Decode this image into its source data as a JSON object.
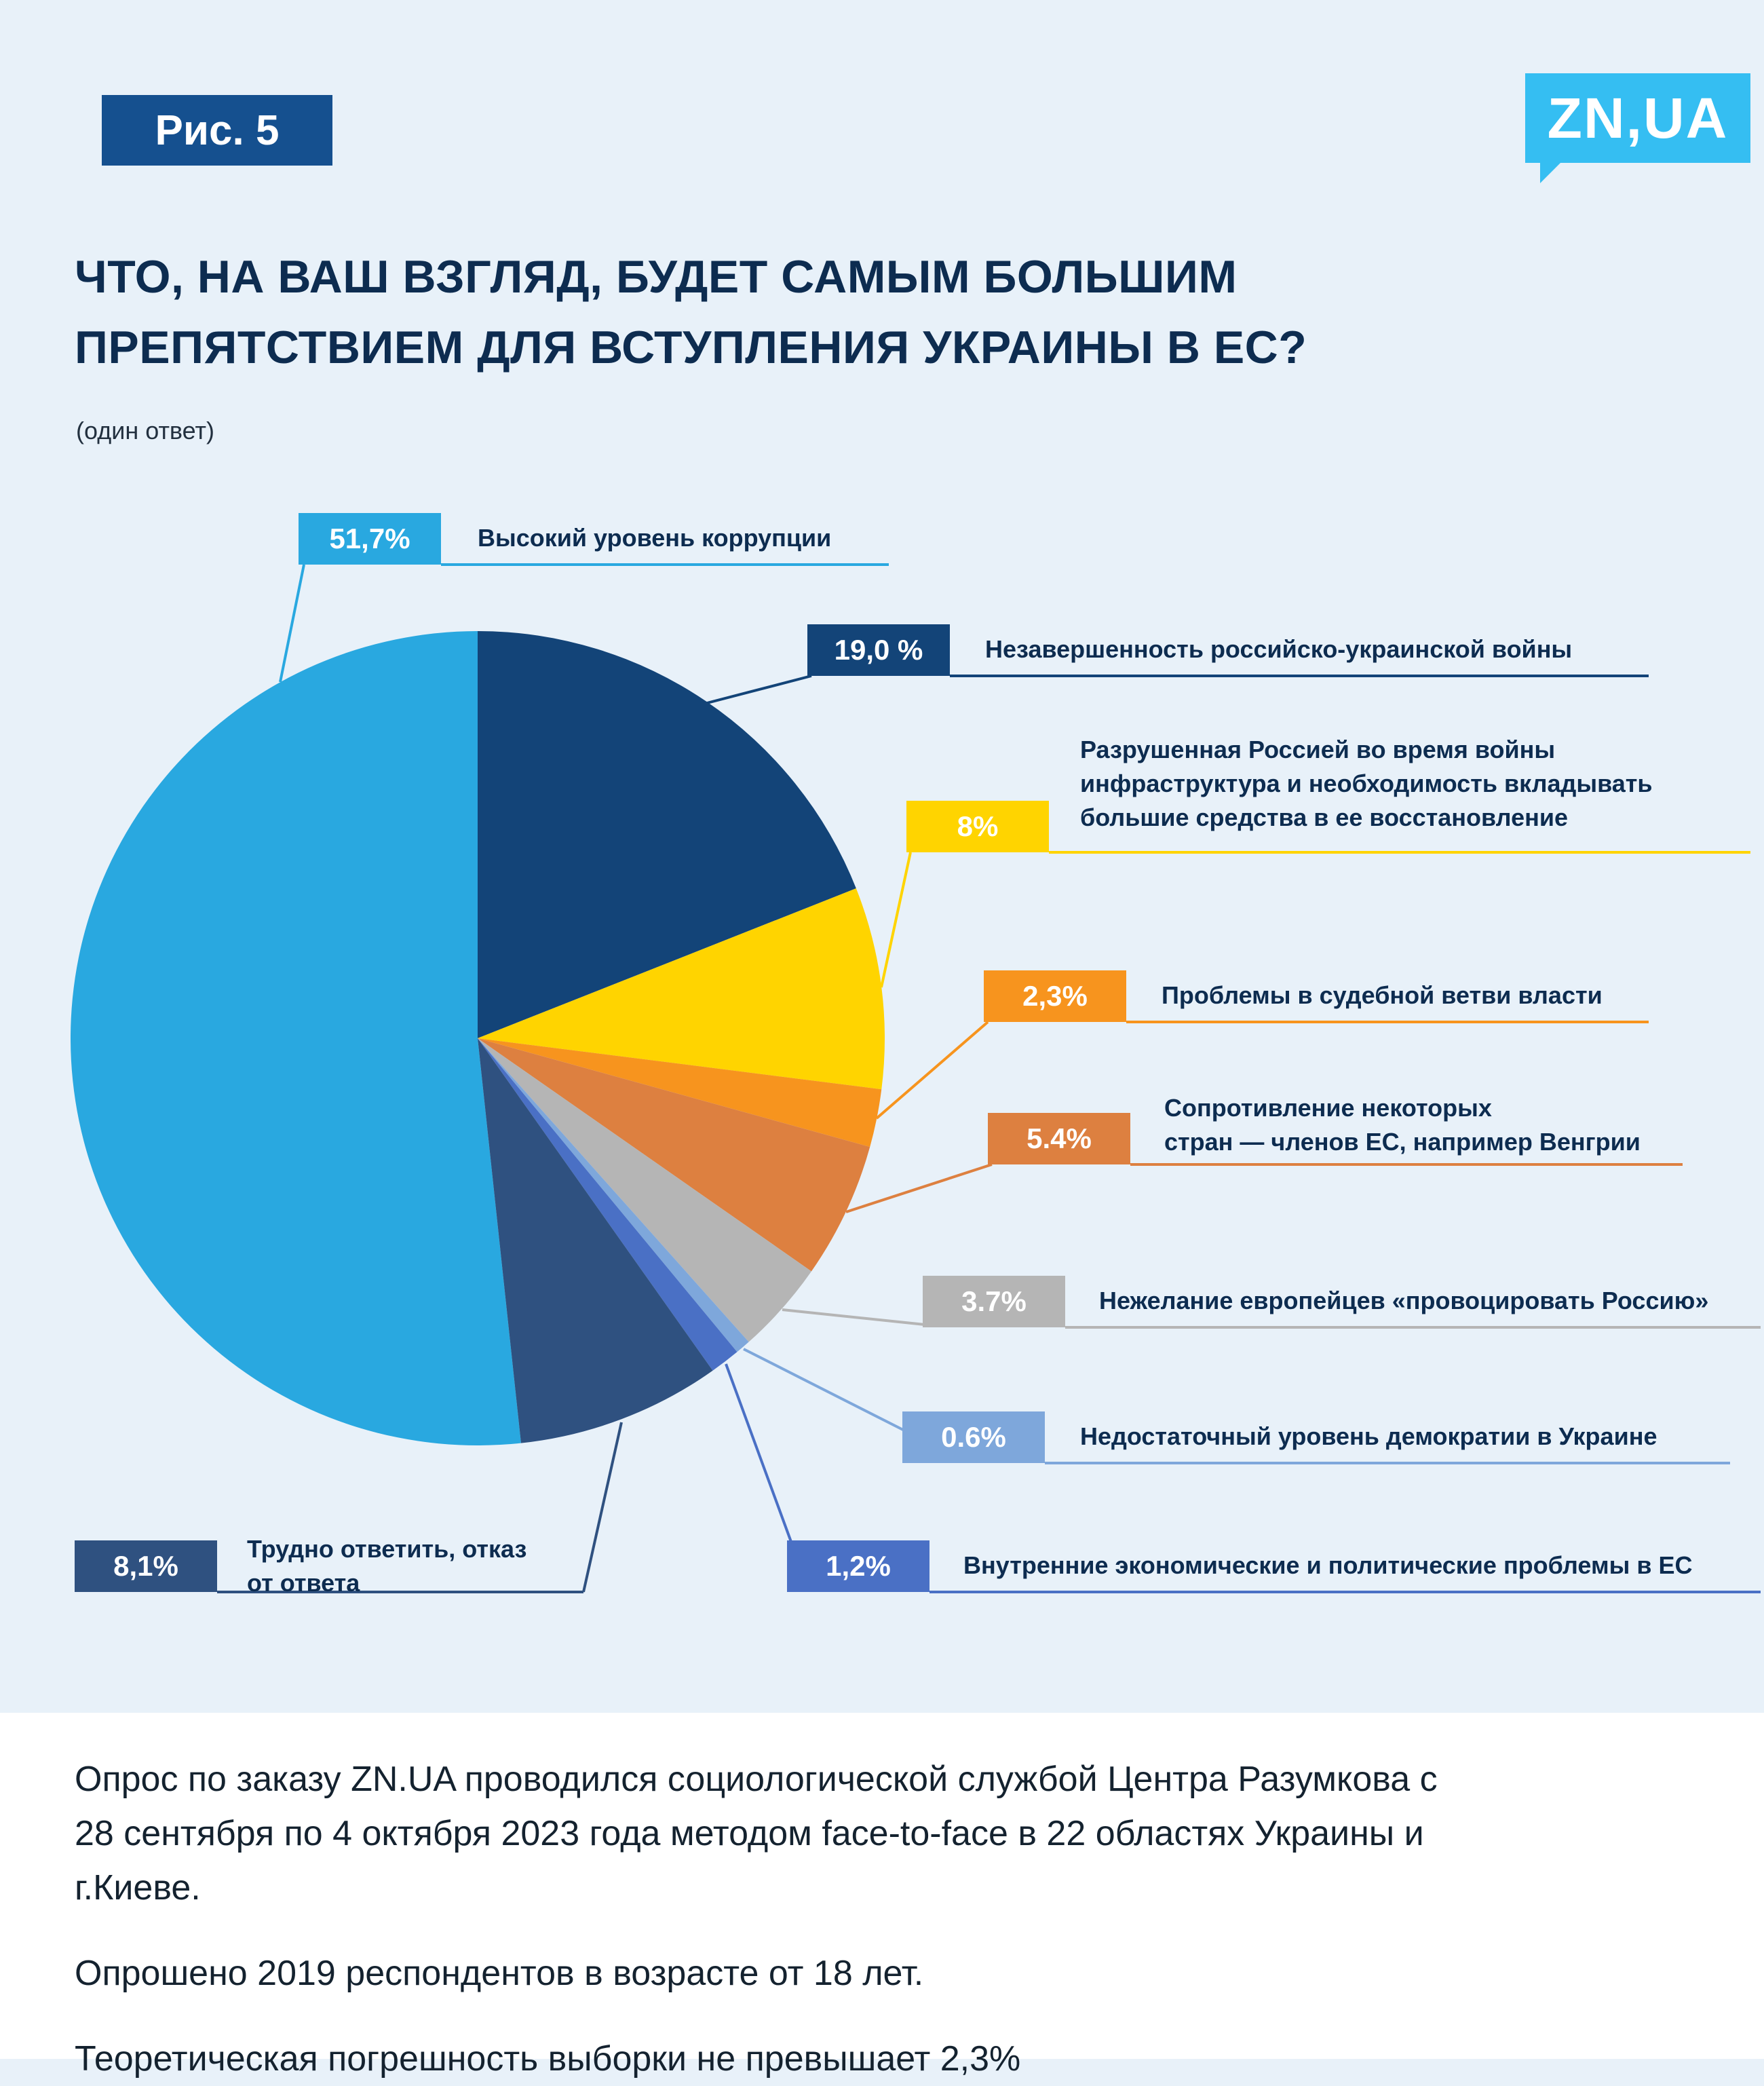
{
  "page": {
    "figure_label": "Рис. 5",
    "logo_text": "ZN,UA",
    "title_line1": "ЧТО, НА ВАШ ВЗГЛЯД, БУДЕТ САМЫМ БОЛЬШИМ",
    "title_line2": "ПРЕПЯТСТВИЕМ ДЛЯ ВСТУПЛЕНИЯ УКРАИНЫ В ЕС?",
    "subtitle": "(один ответ)"
  },
  "colors": {
    "page_bg": "#E8F1F9",
    "footer_bg": "#FFFFFF",
    "brand_cyan": "#35BEF2",
    "figure_chip_blue": "#15508F",
    "title_navy": "#0D2C50"
  },
  "chart_data": {
    "type": "pie",
    "title": "Что, на ваш взгляд, будет самым большим препятствием для вступления Украины в ЕС?",
    "subtitle": "(один ответ)",
    "direction": "clockwise",
    "layout_note": "slices drawn clockwise; first slice ends at 12 o'clock; callouts connected by leader lines",
    "legend_position": "callouts-right",
    "slices": [
      {
        "value": 51.7,
        "value_label": "51,7%",
        "color": "#29A8E0",
        "label": "Высокий уровень коррупции",
        "label_lines": [
          "Высокий уровень коррупции"
        ]
      },
      {
        "value": 19.0,
        "value_label": "19,0 %",
        "color": "#134478",
        "label": "Незавершенность российско-украинской войны",
        "label_lines": [
          "Незавершенность российско-украинской войны"
        ]
      },
      {
        "value": 8,
        "value_label": "8%",
        "color": "#FFD400",
        "label": "Разрушенная Россией во время войны инфраструктура и необходимость вкладывать большие средства в ее восстановление",
        "label_lines": [
          "Разрушенная Россией во время войны",
          "инфраструктура и необходимость вкладывать",
          "большие средства в ее восстановление"
        ]
      },
      {
        "value": 2.3,
        "value_label": "2,3%",
        "color": "#F7941E",
        "label": "Проблемы в судебной ветви власти",
        "label_lines": [
          "Проблемы в судебной ветви власти"
        ]
      },
      {
        "value": 5.4,
        "value_label": "5.4%",
        "color": "#DD8040",
        "label": "Сопротивление некоторых стран — членов ЕС, например Венгрии",
        "label_lines": [
          "Сопротивление некоторых",
          "стран — членов ЕС, например Венгрии"
        ]
      },
      {
        "value": 3.7,
        "value_label": "3.7%",
        "color": "#B5B5B5",
        "label": "Нежелание европейцев «провоцировать Россию»",
        "label_lines": [
          "Нежелание европейцев «провоцировать Россию»"
        ]
      },
      {
        "value": 0.6,
        "value_label": "0.6%",
        "color": "#7EA7DB",
        "label": "Недостаточный уровень демократии в Украине",
        "label_lines": [
          "Недостаточный уровень демократии в Украине"
        ]
      },
      {
        "value": 1.2,
        "value_label": "1,2%",
        "color": "#4A70C5",
        "label": "Внутренние экономические и политические проблемы в ЕС",
        "label_lines": [
          "Внутренние экономические и политические проблемы в ЕС"
        ]
      },
      {
        "value": 8.1,
        "value_label": "8,1%",
        "color": "#2F5180",
        "label": "Трудно ответить, отказ от ответа",
        "label_lines": [
          "Трудно ответить, отказ",
          "от ответа"
        ]
      }
    ]
  },
  "footer": {
    "paragraph1": "Опрос по заказу ZN.UA проводился социологической службой Центра Разумкова с 28 сентября по 4 октября 2023 года методом face-to-face в 22 областях Украины и г.Киеве.",
    "paragraph2": "Опрошено 2019 респондентов в возрасте от 18 лет.",
    "paragraph3": "Теоретическая погрешность выборки не превышает 2,3%"
  }
}
